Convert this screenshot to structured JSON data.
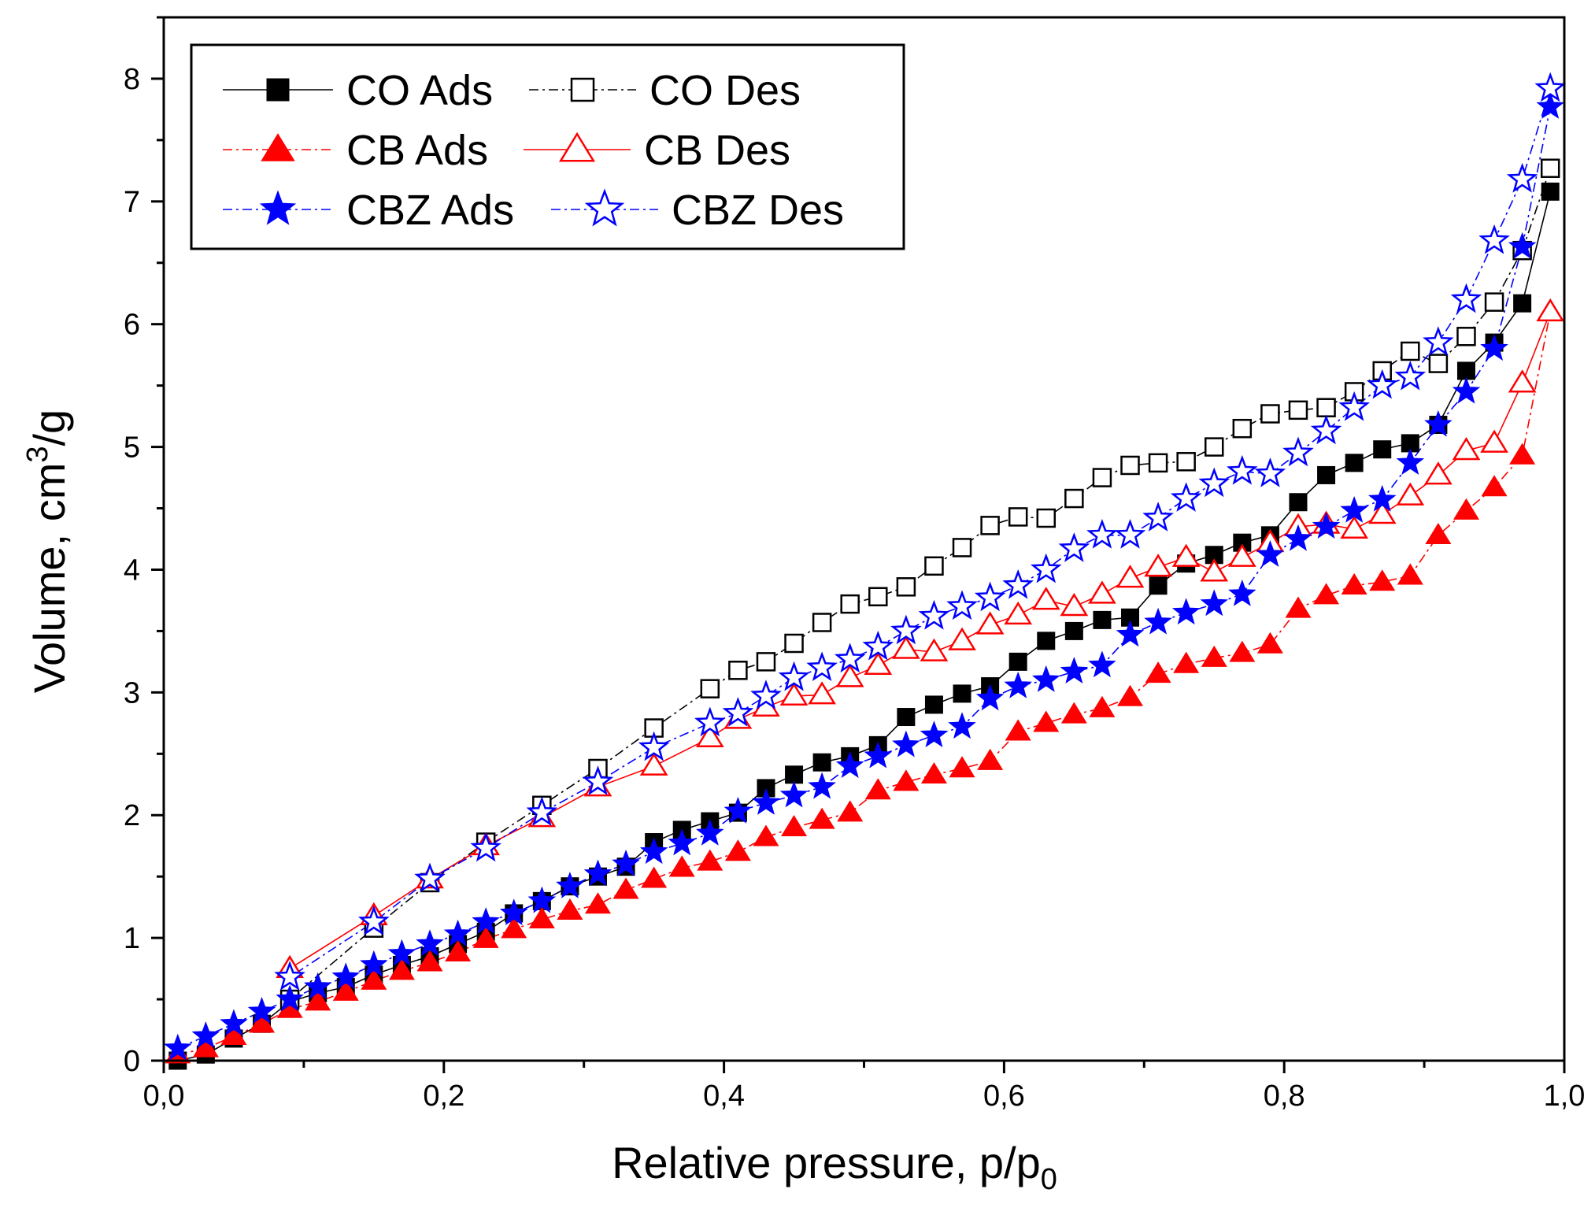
{
  "chart_data": {
    "type": "scatter",
    "title": "",
    "xlabel": "Relative pressure, p/p",
    "xlabel_sub": "0",
    "ylabel": "Volume, cm",
    "ylabel_sup": "3",
    "ylabel_tail": "/g",
    "xlim": [
      0,
      1
    ],
    "ylim": [
      0,
      8.5
    ],
    "x_ticks": [
      0,
      0.2,
      0.4,
      0.6,
      0.8,
      1.0
    ],
    "x_tick_labels": [
      "0,0",
      "0,2",
      "0,4",
      "0,6",
      "0,8",
      "1,0"
    ],
    "y_ticks": [
      0,
      1,
      2,
      3,
      4,
      5,
      6,
      7,
      8
    ],
    "y_tick_labels": [
      "0",
      "1",
      "2",
      "3",
      "4",
      "5",
      "6",
      "7",
      "8"
    ],
    "legend_position": "top-left",
    "series": [
      {
        "name": "CO Ads",
        "color": "#000000",
        "marker": "square",
        "filled": true,
        "line": "solid",
        "x": [
          0.01,
          0.03,
          0.05,
          0.07,
          0.09,
          0.11,
          0.13,
          0.15,
          0.17,
          0.19,
          0.21,
          0.23,
          0.25,
          0.27,
          0.29,
          0.31,
          0.33,
          0.35,
          0.37,
          0.39,
          0.41,
          0.43,
          0.45,
          0.47,
          0.49,
          0.51,
          0.53,
          0.55,
          0.57,
          0.59,
          0.61,
          0.63,
          0.65,
          0.67,
          0.69,
          0.71,
          0.73,
          0.75,
          0.77,
          0.79,
          0.81,
          0.83,
          0.85,
          0.87,
          0.89,
          0.91,
          0.93,
          0.95,
          0.97,
          0.99
        ],
        "y": [
          0.0,
          0.05,
          0.18,
          0.3,
          0.48,
          0.55,
          0.6,
          0.7,
          0.78,
          0.85,
          0.95,
          1.05,
          1.2,
          1.3,
          1.42,
          1.5,
          1.58,
          1.78,
          1.88,
          1.95,
          2.02,
          2.22,
          2.33,
          2.43,
          2.48,
          2.57,
          2.8,
          2.9,
          2.99,
          3.05,
          3.25,
          3.42,
          3.5,
          3.59,
          3.61,
          3.87,
          4.05,
          4.12,
          4.22,
          4.28,
          4.55,
          4.77,
          4.87,
          4.98,
          5.03,
          5.18,
          5.62,
          5.85,
          6.17,
          7.08
        ]
      },
      {
        "name": "CO Des",
        "color": "#000000",
        "marker": "square",
        "filled": false,
        "line": "dashdot",
        "x": [
          0.99,
          0.97,
          0.95,
          0.93,
          0.91,
          0.89,
          0.87,
          0.85,
          0.83,
          0.81,
          0.79,
          0.77,
          0.75,
          0.73,
          0.71,
          0.69,
          0.67,
          0.65,
          0.63,
          0.61,
          0.59,
          0.57,
          0.55,
          0.53,
          0.51,
          0.49,
          0.47,
          0.45,
          0.43,
          0.41,
          0.39,
          0.35,
          0.31,
          0.27,
          0.23,
          0.19,
          0.15,
          0.09
        ],
        "y": [
          7.27,
          6.6,
          6.18,
          5.9,
          5.68,
          5.78,
          5.62,
          5.45,
          5.32,
          5.3,
          5.27,
          5.15,
          5.0,
          4.88,
          4.87,
          4.85,
          4.75,
          4.58,
          4.42,
          4.43,
          4.36,
          4.18,
          4.03,
          3.86,
          3.78,
          3.72,
          3.57,
          3.4,
          3.25,
          3.18,
          3.03,
          2.71,
          2.38,
          2.08,
          1.78,
          1.45,
          1.08,
          0.5
        ]
      },
      {
        "name": "CB Ads",
        "color": "#ff0000",
        "marker": "triangle",
        "filled": true,
        "line": "dashdot",
        "x": [
          0.01,
          0.03,
          0.05,
          0.07,
          0.09,
          0.11,
          0.13,
          0.15,
          0.17,
          0.19,
          0.21,
          0.23,
          0.25,
          0.27,
          0.29,
          0.31,
          0.33,
          0.35,
          0.37,
          0.39,
          0.41,
          0.43,
          0.45,
          0.47,
          0.49,
          0.51,
          0.53,
          0.55,
          0.57,
          0.59,
          0.61,
          0.63,
          0.65,
          0.67,
          0.69,
          0.71,
          0.73,
          0.75,
          0.77,
          0.79,
          0.81,
          0.83,
          0.85,
          0.87,
          0.89,
          0.91,
          0.93,
          0.95,
          0.97,
          0.99
        ],
        "y": [
          0.05,
          0.1,
          0.2,
          0.3,
          0.42,
          0.48,
          0.56,
          0.65,
          0.73,
          0.8,
          0.88,
          0.99,
          1.07,
          1.15,
          1.22,
          1.27,
          1.39,
          1.48,
          1.57,
          1.62,
          1.7,
          1.82,
          1.9,
          1.96,
          2.02,
          2.2,
          2.27,
          2.33,
          2.38,
          2.44,
          2.68,
          2.75,
          2.82,
          2.87,
          2.96,
          3.15,
          3.23,
          3.28,
          3.32,
          3.39,
          3.68,
          3.79,
          3.87,
          3.9,
          3.95,
          4.28,
          4.48,
          4.67,
          4.93,
          6.1
        ]
      },
      {
        "name": "CB Des",
        "color": "#ff0000",
        "marker": "triangle",
        "filled": false,
        "line": "solid",
        "x": [
          0.99,
          0.97,
          0.95,
          0.93,
          0.91,
          0.89,
          0.87,
          0.85,
          0.83,
          0.81,
          0.79,
          0.77,
          0.75,
          0.73,
          0.71,
          0.69,
          0.67,
          0.65,
          0.63,
          0.61,
          0.59,
          0.57,
          0.55,
          0.53,
          0.51,
          0.49,
          0.47,
          0.45,
          0.43,
          0.41,
          0.39,
          0.35,
          0.31,
          0.27,
          0.23,
          0.19,
          0.15,
          0.09
        ],
        "y": [
          6.1,
          5.52,
          5.03,
          4.97,
          4.77,
          4.6,
          4.45,
          4.33,
          4.37,
          4.35,
          4.22,
          4.1,
          3.98,
          4.1,
          4.02,
          3.93,
          3.8,
          3.7,
          3.75,
          3.63,
          3.55,
          3.42,
          3.33,
          3.35,
          3.22,
          3.12,
          2.98,
          2.97,
          2.88,
          2.78,
          2.63,
          2.4,
          2.23,
          1.98,
          1.75,
          1.48,
          1.18,
          0.75
        ]
      },
      {
        "name": "CBZ Ads",
        "color": "#0000ff",
        "marker": "star",
        "filled": true,
        "line": "dashdot",
        "x": [
          0.01,
          0.03,
          0.05,
          0.07,
          0.09,
          0.11,
          0.13,
          0.15,
          0.17,
          0.19,
          0.21,
          0.23,
          0.25,
          0.27,
          0.29,
          0.31,
          0.33,
          0.35,
          0.37,
          0.39,
          0.41,
          0.43,
          0.45,
          0.47,
          0.49,
          0.51,
          0.53,
          0.55,
          0.57,
          0.59,
          0.61,
          0.63,
          0.65,
          0.67,
          0.69,
          0.71,
          0.73,
          0.75,
          0.77,
          0.79,
          0.81,
          0.83,
          0.85,
          0.87,
          0.89,
          0.91,
          0.93,
          0.95,
          0.97,
          0.99
        ],
        "y": [
          0.1,
          0.2,
          0.3,
          0.4,
          0.5,
          0.6,
          0.68,
          0.78,
          0.87,
          0.95,
          1.03,
          1.13,
          1.2,
          1.3,
          1.42,
          1.52,
          1.6,
          1.7,
          1.77,
          1.85,
          2.03,
          2.1,
          2.16,
          2.23,
          2.4,
          2.48,
          2.57,
          2.65,
          2.72,
          2.95,
          3.05,
          3.1,
          3.17,
          3.22,
          3.47,
          3.57,
          3.65,
          3.72,
          3.8,
          4.12,
          4.25,
          4.35,
          4.48,
          4.57,
          4.87,
          5.18,
          5.45,
          5.8,
          6.63,
          7.77
        ]
      },
      {
        "name": "CBZ Des",
        "color": "#0000ff",
        "marker": "star",
        "filled": false,
        "line": "dashdot",
        "x": [
          0.99,
          0.97,
          0.95,
          0.93,
          0.91,
          0.89,
          0.87,
          0.85,
          0.83,
          0.81,
          0.79,
          0.77,
          0.75,
          0.73,
          0.71,
          0.69,
          0.67,
          0.65,
          0.63,
          0.61,
          0.59,
          0.57,
          0.55,
          0.53,
          0.51,
          0.49,
          0.47,
          0.45,
          0.43,
          0.41,
          0.39,
          0.35,
          0.31,
          0.27,
          0.23,
          0.19,
          0.15,
          0.09
        ],
        "y": [
          7.92,
          7.18,
          6.68,
          6.2,
          5.85,
          5.57,
          5.5,
          5.32,
          5.13,
          4.95,
          4.78,
          4.8,
          4.7,
          4.58,
          4.42,
          4.28,
          4.28,
          4.17,
          4.0,
          3.87,
          3.77,
          3.7,
          3.62,
          3.5,
          3.37,
          3.27,
          3.2,
          3.12,
          2.97,
          2.83,
          2.75,
          2.55,
          2.27,
          2.02,
          1.73,
          1.48,
          1.13,
          0.68
        ]
      }
    ],
    "legend": [
      [
        "CO Ads",
        "CO Des"
      ],
      [
        "CB Ads",
        "CB Des"
      ],
      [
        "CBZ Ads",
        "CBZ Des"
      ]
    ]
  }
}
